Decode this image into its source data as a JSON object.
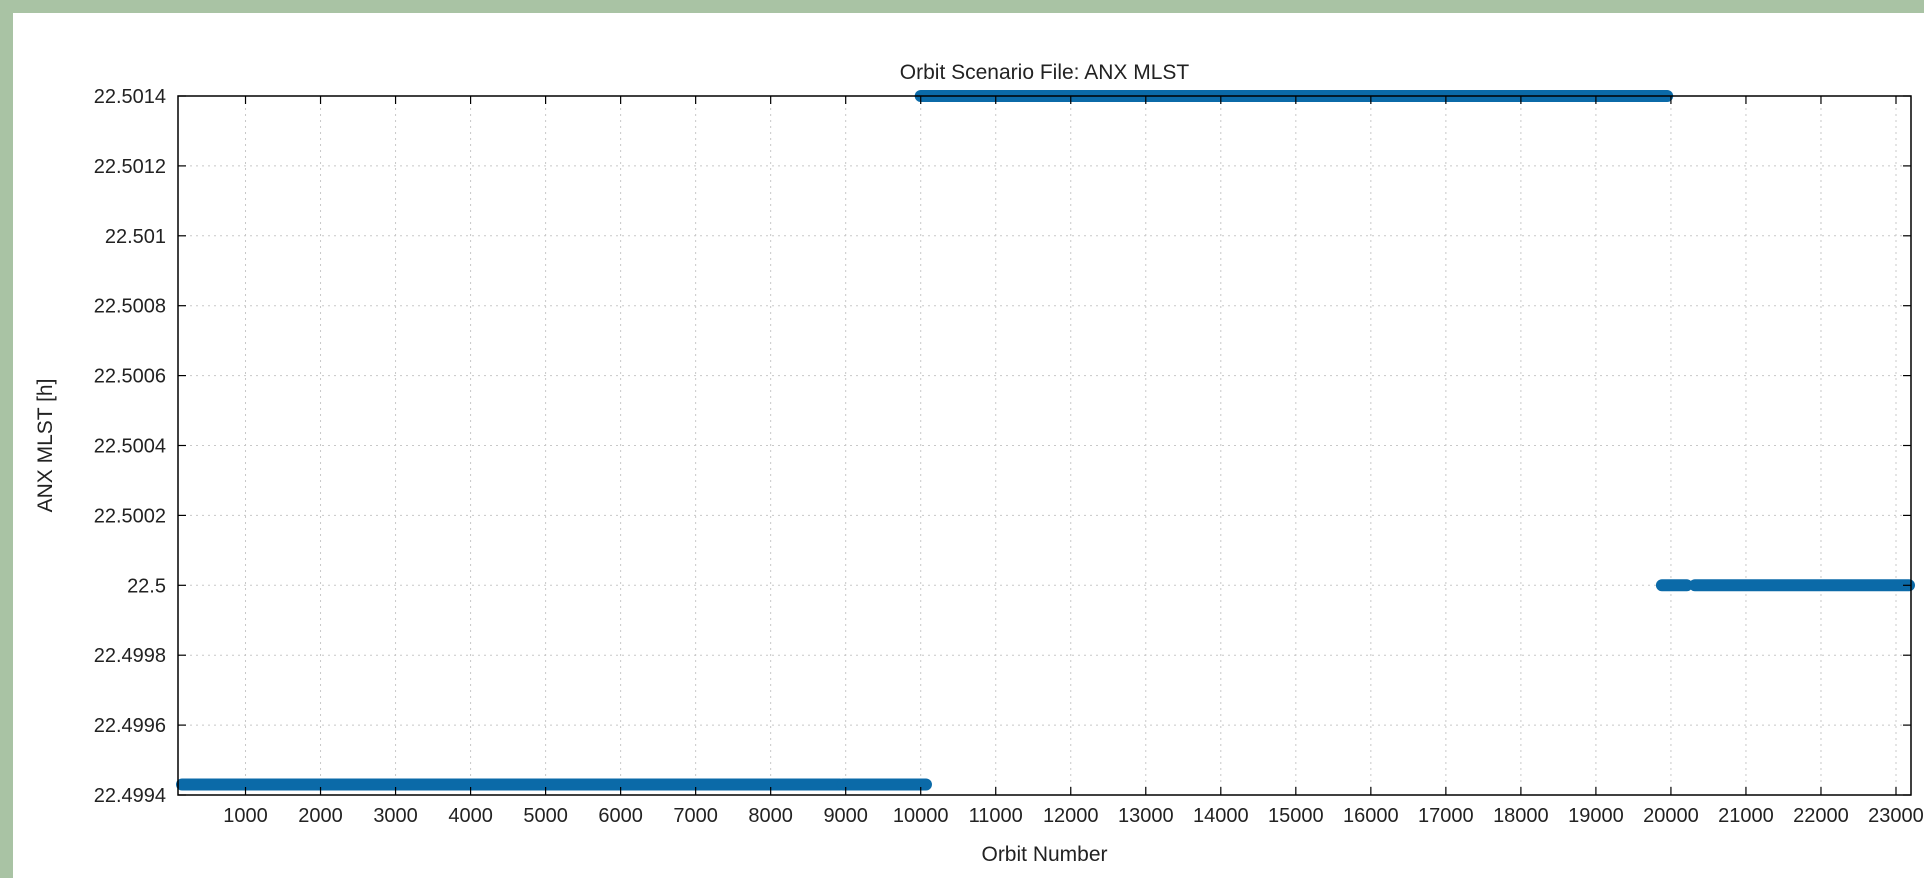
{
  "chart_data": {
    "type": "scatter",
    "title": "Orbit Scenario File: ANX MLST",
    "xlabel": "Orbit Number",
    "ylabel": "ANX MLST [h]",
    "xlim": [
      100,
      23200
    ],
    "ylim": [
      22.4994,
      22.5014
    ],
    "xticks": [
      1000,
      2000,
      3000,
      4000,
      5000,
      6000,
      7000,
      8000,
      9000,
      10000,
      11000,
      12000,
      13000,
      14000,
      15000,
      16000,
      17000,
      18000,
      19000,
      20000,
      21000,
      22000,
      23000
    ],
    "yticks": [
      {
        "value": 22.4994,
        "label": "22.4994"
      },
      {
        "value": 22.4996,
        "label": "22.4996"
      },
      {
        "value": 22.4998,
        "label": "22.4998"
      },
      {
        "value": 22.5,
        "label": "22.5"
      },
      {
        "value": 22.5002,
        "label": "22.5002"
      },
      {
        "value": 22.5004,
        "label": "22.5004"
      },
      {
        "value": 22.5006,
        "label": "22.5006"
      },
      {
        "value": 22.5008,
        "label": "22.5008"
      },
      {
        "value": 22.501,
        "label": "22.501"
      },
      {
        "value": 22.5012,
        "label": "22.5012"
      },
      {
        "value": 22.5014,
        "label": "22.5014"
      }
    ],
    "grid": true,
    "marker_color": "#0b6aa8",
    "series": [
      {
        "segments": [
          {
            "x_start": 100,
            "x_end": 8920,
            "y": 22.49943
          },
          {
            "x_start": 8960,
            "x_end": 10070,
            "y": 22.49943
          },
          {
            "x_start": 10000,
            "x_end": 19950,
            "y": 22.5014
          },
          {
            "x_start": 19880,
            "x_end": 20210,
            "y": 22.5
          },
          {
            "x_start": 20320,
            "x_end": 23200,
            "y": 22.5
          }
        ]
      }
    ]
  }
}
